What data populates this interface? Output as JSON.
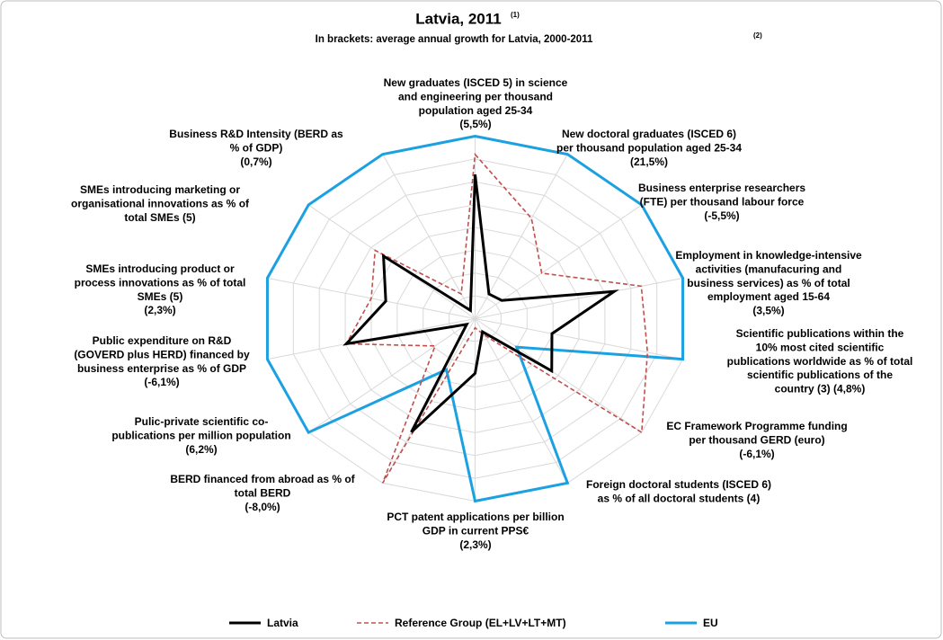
{
  "chart_data": {
    "type": "radar",
    "title": "Latvia, 2011",
    "title_note": "(1)",
    "subtitle": "In brackets: average annual growth for Latvia, 2000-2011",
    "subtitle_note": "(2)",
    "categories": [
      [
        "New graduates (ISCED 5) in science",
        "and engineering per thousand",
        "population aged 25-34",
        "(5,5%)"
      ],
      [
        "New doctoral graduates (ISCED 6)",
        "per thousand population aged 25-34",
        "(21,5%)"
      ],
      [
        "Business enterprise researchers",
        "(FTE) per thousand labour force",
        "(-5,5%)"
      ],
      [
        "Employment in knowledge-intensive",
        "activities (manufacuring and",
        "business services) as % of total",
        "employment aged 15-64",
        "(3,5%)"
      ],
      [
        "Scientific publications within the",
        "10% most cited scientific",
        "publications worldwide as % of total",
        "scientific publications of the",
        "country (3) (4,8%)"
      ],
      [
        "EC Framework Programme funding",
        "per thousand GERD (euro)",
        "(-6,1%)"
      ],
      [
        "Foreign doctoral students (ISCED 6)",
        "as % of all doctoral students (4)"
      ],
      [
        "PCT patent applications per billion",
        "GDP in current PPS€",
        "(2,3%)"
      ],
      [
        "BERD financed from abroad as % of",
        "total BERD",
        "(-8,0%)"
      ],
      [
        "Pulic-private scientific co-",
        "publications per million population",
        "(6,2%)"
      ],
      [
        "Public expenditure on R&D",
        "(GOVERD plus HERD) financed by",
        "business enterprise as % of GDP",
        "(-6,1%)"
      ],
      [
        "SMEs introducing product or",
        "process innovations as % of total",
        "SMEs (5)",
        "(2,3%)"
      ],
      [
        "SMEs introducing marketing or",
        "organisational innovations as % of",
        "total SMEs (5)"
      ],
      [
        "Business R&D Intensity (BERD as",
        "% of GDP)",
        "(0,7%)"
      ]
    ],
    "series": [
      {
        "name": "Latvia",
        "color": "#000000",
        "dash": false,
        "values": [
          0.79,
          0.15,
          0.16,
          0.67,
          0.37,
          0.46,
          0.08,
          0.3,
          0.69,
          0.05,
          0.62,
          0.43,
          0.55,
          0.05
        ]
      },
      {
        "name": "Reference Group (EL+LV+LT+MT)",
        "color": "#c0504d",
        "dash": true,
        "values": [
          0.9,
          0.61,
          0.4,
          0.8,
          0.83,
          1.0,
          0.1,
          0.05,
          1.0,
          0.24,
          0.62,
          0.5,
          0.6,
          0.15
        ]
      },
      {
        "name": "EU",
        "color": "#1ba1e2",
        "dash": false,
        "values": [
          1,
          1,
          1,
          1,
          1,
          0.25,
          1,
          1,
          0.31,
          1,
          1,
          1,
          1,
          1
        ]
      }
    ],
    "ylim": [
      0,
      1
    ],
    "yticks": [
      0.125,
      0.25,
      0.375,
      0.5,
      0.625,
      0.75,
      0.875,
      1
    ],
    "grid": true,
    "legend": "bottom"
  }
}
